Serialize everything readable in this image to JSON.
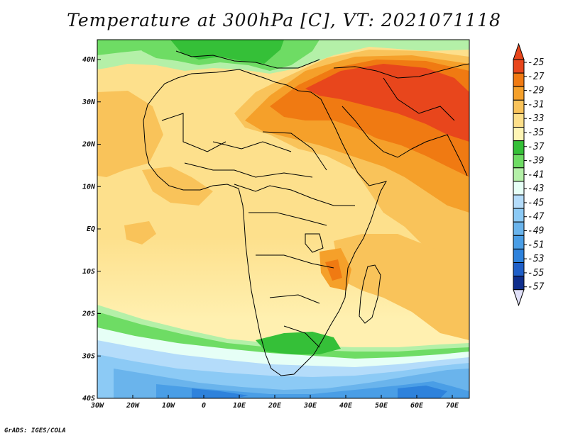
{
  "title": "Temperature at 300hPa [C], VT: 2021071118",
  "credit": "GrADS: IGES/COLA",
  "map": {
    "lon_ticks": [
      "30W",
      "20W",
      "10W",
      "0",
      "10E",
      "20E",
      "30E",
      "40E",
      "50E",
      "60E",
      "70E"
    ],
    "lat_ticks": [
      "40N",
      "30N",
      "20N",
      "10N",
      "EQ",
      "10S",
      "20S",
      "30S",
      "40S"
    ]
  },
  "colorbar": {
    "labels": [
      "-25",
      "-27",
      "-29",
      "-31",
      "-33",
      "-35",
      "-37",
      "-39",
      "-41",
      "-43",
      "-45",
      "-47",
      "-49",
      "-51",
      "-53",
      "-55",
      "-57"
    ],
    "colors": [
      "#e8461c",
      "#f07a12",
      "#f5a02a",
      "#f9c35a",
      "#fddf8a",
      "#fff5b5",
      "#35c038",
      "#6edc64",
      "#b4f0a8",
      "#e6fff6",
      "#b4dcfa",
      "#8ccaf5",
      "#6ab4ec",
      "#4a9ee6",
      "#2e82dc",
      "#1f5fc8",
      "#0f2e8c"
    ],
    "over_color": "#e8461c",
    "under_color": "#e0e0f8"
  }
}
